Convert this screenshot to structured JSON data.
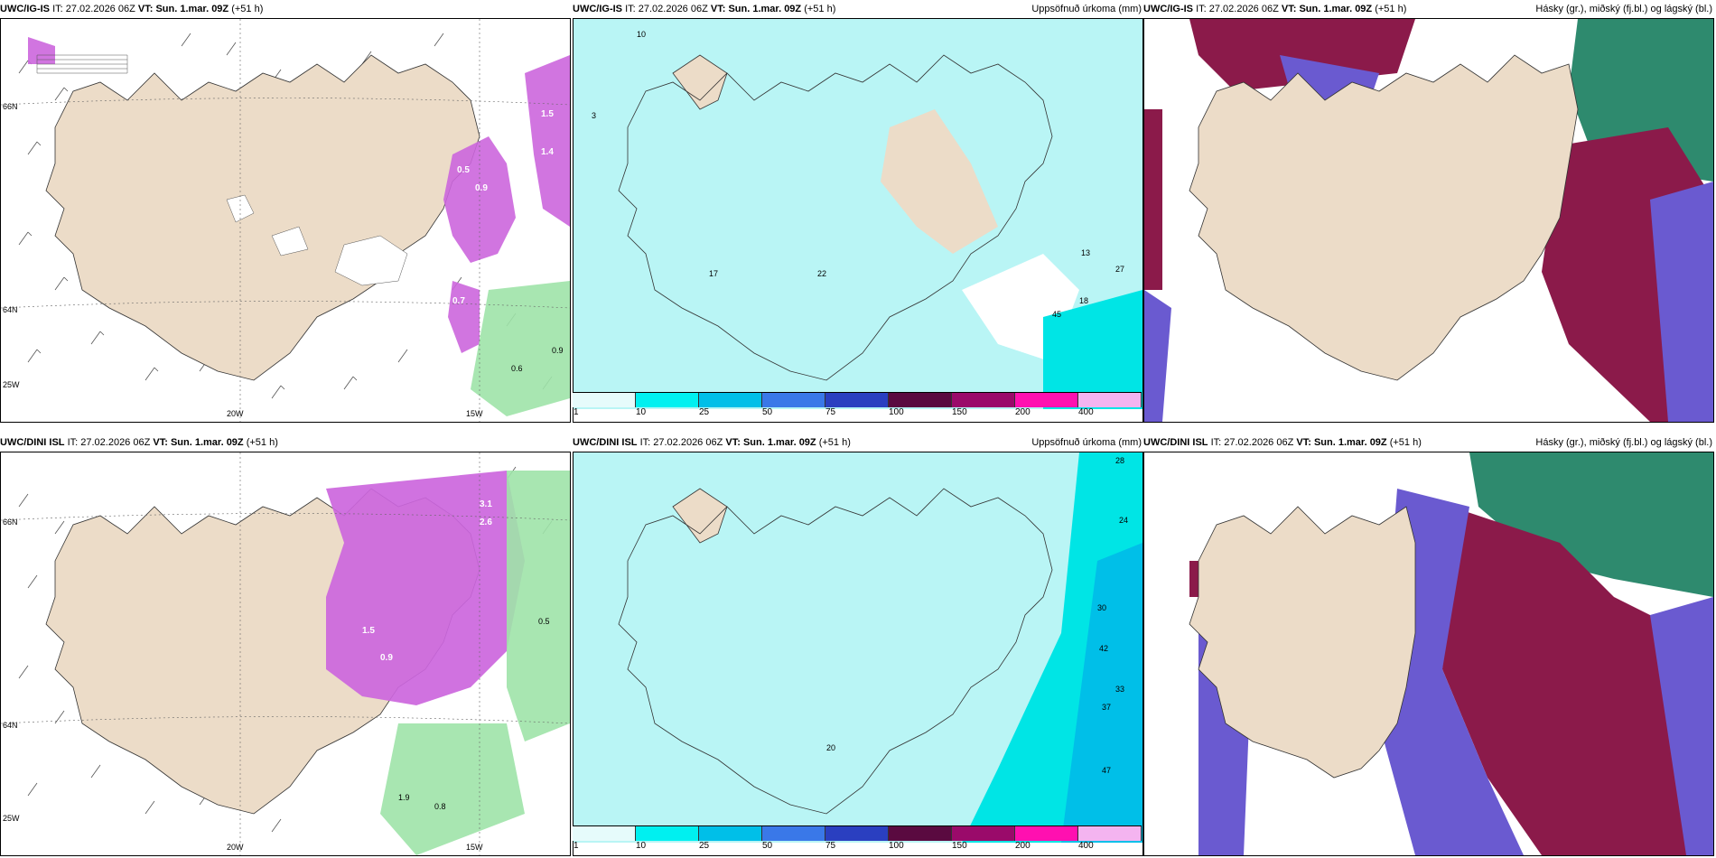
{
  "colors": {
    "land": "#ecdcc8",
    "sea": "#ffffff",
    "precip_sea": "#b9f5f5",
    "precip_pink": "#cc66dd",
    "precip_green": "#9fe3a8",
    "cloud_high": "#2e8a6e",
    "cloud_mid": "#8b1a4a",
    "cloud_low": "#6a5ad0"
  },
  "panels": [
    {
      "id": "p1",
      "model": "UWC/IG-IS",
      "it_label": "IT:",
      "it_value": "27.02.2026 06Z",
      "vt": "VT: Sun. 1.mar. 09Z",
      "offset": "(+51 h)",
      "right": ""
    },
    {
      "id": "p2",
      "model": "UWC/IG-IS",
      "it_label": "IT:",
      "it_value": "27.02.2026 06Z",
      "vt": "VT: Sun. 1.mar. 09Z",
      "offset": "(+51 h)",
      "right": "Uppsöfnuð úrkoma (mm)"
    },
    {
      "id": "p3",
      "model": "UWC/IG-IS",
      "it_label": "IT:",
      "it_value": "27.02.2026 06Z",
      "vt": "VT: Sun. 1.mar. 09Z",
      "offset": "(+51 h)",
      "right": "Hásky (gr.), miðský (fj.bl.) og lágský (bl.)"
    },
    {
      "id": "p4",
      "model": "UWC/DINI ISL",
      "it_label": "IT:",
      "it_value": "27.02.2026 06Z",
      "vt": "VT: Sun. 1.mar. 09Z",
      "offset": "(+51 h)",
      "right": ""
    },
    {
      "id": "p5",
      "model": "UWC/DINI ISL",
      "it_label": "IT:",
      "it_value": "27.02.2026 06Z",
      "vt": "VT: Sun. 1.mar. 09Z",
      "offset": "(+51 h)",
      "right": "Uppsöfnuð úrkoma (mm)"
    },
    {
      "id": "p6",
      "model": "UWC/DINI ISL",
      "it_label": "IT:",
      "it_value": "27.02.2026 06Z",
      "vt": "VT: Sun. 1.mar. 09Z",
      "offset": "(+51 h)",
      "right": "Hásky (gr.), miðský (fj.bl.) og lágský (bl.)"
    }
  ],
  "axis": {
    "lat_66": "66N",
    "lat_64": "64N",
    "lon_25": "25W",
    "lon_20": "20W",
    "lon_15": "15W"
  },
  "legend": {
    "colors": [
      "#e6fbfb",
      "#00f0f0",
      "#00bfe8",
      "#3a78e8",
      "#2a3fc0",
      "#5a0a40",
      "#9a0a6a",
      "#ff10b0",
      "#f4b4f0"
    ],
    "labels": [
      "1",
      "10",
      "25",
      "50",
      "75",
      "100",
      "150",
      "200",
      "400"
    ]
  },
  "numbers": {
    "a": "10",
    "b": "3",
    "c": "17",
    "d": "22",
    "e": "13",
    "f": "27",
    "g": "45",
    "h": "18",
    "i": "1.5",
    "j": "1.4",
    "k": "0.9",
    "l": "0.6",
    "m": "0.5",
    "n": "0.7",
    "o": "28",
    "p": "42",
    "q": "33",
    "r": "37",
    "s": "47",
    "t": "3.1",
    "u": "2.6",
    "v": "1.9",
    "w": "0.8",
    "x": "20",
    "y": "24",
    "z": "30"
  }
}
